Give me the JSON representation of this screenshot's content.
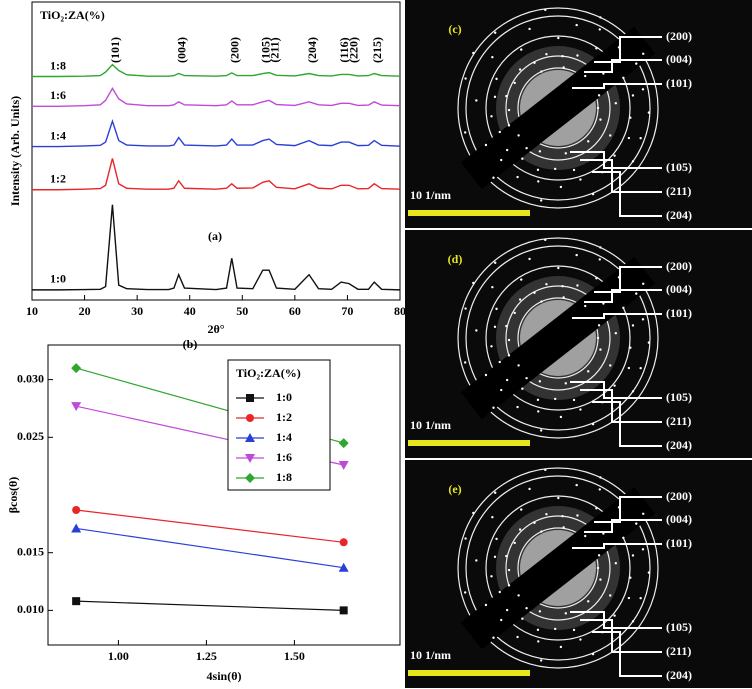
{
  "chart_data": [
    {
      "type": "line",
      "annotation": "(a)",
      "xlabel": "2θ°",
      "ylabel": "Intensity (Arb. Units)",
      "legend_title": "TiO₂:ZA(%)",
      "x": [
        10,
        15,
        20,
        23,
        24,
        25.3,
        26.5,
        28,
        32,
        36,
        37,
        37.9,
        39,
        45,
        47,
        48,
        49,
        52,
        53.9,
        55.1,
        56.5,
        60,
        62.7,
        64.5,
        67,
        68.8,
        70.3,
        72,
        74,
        75.1,
        76.5,
        80
      ],
      "xlim": [
        10,
        80
      ],
      "xticks": [
        10,
        20,
        30,
        40,
        50,
        60,
        70,
        80
      ],
      "ylim": [
        0,
        100
      ],
      "series": [
        {
          "name": "1:0",
          "color": "#111111",
          "values": [
            3.4,
            3.4,
            3.5,
            3.6,
            4.5,
            32,
            5,
            3.8,
            3.5,
            3.5,
            4,
            8.5,
            4,
            3.5,
            4,
            14,
            4,
            3.8,
            10,
            10,
            4,
            3.6,
            8.5,
            3.8,
            3.6,
            6,
            5.5,
            3.6,
            3.6,
            6,
            3.6,
            3.4
          ]
        },
        {
          "name": "1:2",
          "color": "#e8262a",
          "values": [
            37,
            37,
            37.2,
            37.4,
            38.5,
            47.5,
            39,
            37.5,
            37.2,
            37.2,
            37.5,
            40,
            37.5,
            37.2,
            37.5,
            39,
            37.5,
            37.6,
            39.5,
            40,
            37.8,
            37.3,
            39,
            37.5,
            37.3,
            38.5,
            38.5,
            37.3,
            37.4,
            39,
            37.4,
            37.2
          ]
        },
        {
          "name": "1:4",
          "color": "#2b3fd6",
          "values": [
            51.5,
            51.5,
            51.7,
            51.9,
            53,
            60,
            53.5,
            52,
            51.7,
            51.7,
            52,
            54.5,
            52,
            51.7,
            52,
            54,
            52,
            52,
            53.5,
            54,
            52.2,
            51.8,
            53.5,
            52,
            51.8,
            53,
            53,
            51.8,
            51.9,
            53.5,
            51.9,
            51.6
          ]
        },
        {
          "name": "1:6",
          "color": "#c04ad8",
          "values": [
            65,
            65,
            65.2,
            65.5,
            67,
            71,
            67.5,
            65.8,
            65.2,
            65.2,
            65.5,
            66.5,
            65.5,
            65.2,
            65.5,
            66.8,
            65.5,
            65.5,
            66.5,
            67,
            65.6,
            65.3,
            66.5,
            65.5,
            65.3,
            66,
            66,
            65.3,
            65.4,
            66.5,
            65.4,
            65.2
          ]
        },
        {
          "name": "1:8",
          "color": "#2fa62f",
          "values": [
            75,
            75,
            75.1,
            75.3,
            76.5,
            79,
            77,
            75.6,
            75.1,
            75.1,
            75.3,
            76,
            75.3,
            75.1,
            75.3,
            76.2,
            75.3,
            75.3,
            76,
            76.3,
            75.4,
            75.2,
            76,
            75.3,
            75.2,
            75.7,
            75.7,
            75.2,
            75.3,
            76,
            75.3,
            75.1
          ]
        }
      ],
      "peak_labels": [
        {
          "text": "(101)",
          "x": 25.3
        },
        {
          "text": "(004)",
          "x": 37.9
        },
        {
          "text": "(200)",
          "x": 48
        },
        {
          "text": "(105)",
          "x": 53.9
        },
        {
          "text": "(211)",
          "x": 55.6
        },
        {
          "text": "(204)",
          "x": 62.7
        },
        {
          "text": "(116)",
          "x": 68.8
        },
        {
          "text": "(220)",
          "x": 70.6
        },
        {
          "text": "(215)",
          "x": 75.1
        }
      ]
    },
    {
      "type": "line",
      "annotation": "(b)",
      "xlabel": "4sin(θ)",
      "ylabel": "βcos(θ)",
      "legend_title": "TiO₂:ZA(%)",
      "legend": "upper right",
      "x": [
        0.88,
        1.64
      ],
      "xlim": [
        0.8,
        1.8
      ],
      "xticks": [
        {
          "value": 1,
          "label": "1.00"
        },
        1.25,
        {
          "value": 1.5,
          "label": "1.50"
        }
      ],
      "ylim": [
        0.007,
        0.033
      ],
      "yticks": [
        {
          "value": 0.01,
          "label": "0.010"
        },
        0.015,
        0.025,
        {
          "value": 0.03,
          "label": "0.030"
        }
      ],
      "series": [
        {
          "name": "1:0",
          "color": "#111111",
          "marker": "square",
          "values": [
            0.0108,
            0.01
          ]
        },
        {
          "name": "1:2",
          "color": "#e8262a",
          "marker": "circle",
          "values": [
            0.0187,
            0.0159
          ]
        },
        {
          "name": "1:4",
          "color": "#2b3fd6",
          "marker": "triangle-up",
          "values": [
            0.0171,
            0.0137
          ]
        },
        {
          "name": "1:6",
          "color": "#c04ad8",
          "marker": "triangle-down",
          "values": [
            0.0277,
            0.0226
          ]
        },
        {
          "name": "1:8",
          "color": "#2fa62f",
          "marker": "diamond",
          "values": [
            0.031,
            0.0245
          ]
        }
      ]
    }
  ],
  "diffraction_panels": [
    {
      "label": "(c)",
      "scale": "10 1/nm",
      "planes": [
        "(200)",
        "(004)",
        "(101)",
        "(105)",
        "(211)",
        "(204)"
      ]
    },
    {
      "label": "(d)",
      "scale": "10 1/nm",
      "planes": [
        "(200)",
        "(004)",
        "(101)",
        "(105)",
        "(211)",
        "(204)"
      ]
    },
    {
      "label": "(e)",
      "scale": "10 1/nm",
      "planes": [
        "(200)",
        "(004)",
        "(101)",
        "(105)",
        "(211)",
        "(204)"
      ]
    }
  ]
}
